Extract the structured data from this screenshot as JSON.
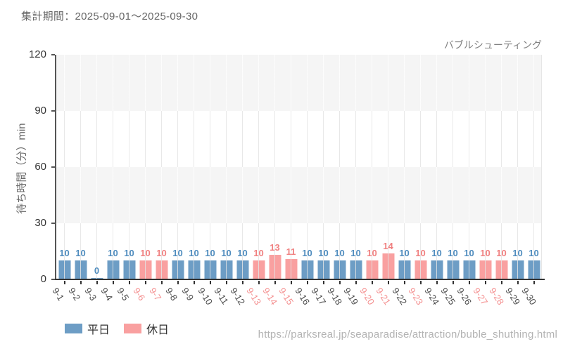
{
  "header": {
    "period_label": "集計期間：2025-09-01～2025-09-30"
  },
  "footer": {
    "source_url": "https://parksreal.jp/seaparadise/attraction/buble_shuthing.html"
  },
  "legend": {
    "items": [
      {
        "key": "weekday",
        "label": "平日",
        "color": "#6d9dc5"
      },
      {
        "key": "holiday",
        "label": "休日",
        "color": "#f9a0a0"
      }
    ]
  },
  "chart_data": {
    "type": "bar",
    "title": "バブルシューティング",
    "xlabel": "",
    "ylabel": "待ち時間（分）min",
    "ylim": [
      0,
      120
    ],
    "yticks": [
      0,
      30,
      60,
      90,
      120
    ],
    "grid": "vertical lines at each category; horizontal alternating gray/white bands every 30 units",
    "legend_position": "bottom-left",
    "x_tick_rotation_deg": 57,
    "categories": [
      "9-1",
      "9-2",
      "9-3",
      "9-4",
      "9-5",
      "9-6",
      "9-7",
      "9-8",
      "9-9",
      "9-10",
      "9-11",
      "9-12",
      "9-13",
      "9-14",
      "9-15",
      "9-16",
      "9-17",
      "9-18",
      "9-19",
      "9-20",
      "9-21",
      "9-22",
      "9-23",
      "9-24",
      "9-25",
      "9-26",
      "9-27",
      "9-28",
      "9-29",
      "9-30"
    ],
    "series_colors": {
      "平日": "#6d9dc5",
      "休日": "#f9a0a0"
    },
    "value_label_colors": {
      "平日": "#4f8cbe",
      "休日": "#f08080"
    },
    "tick_label_colors": {
      "平日": "#4a4a4a",
      "休日": "#f48f8f"
    },
    "points": [
      {
        "date": "9-1",
        "value": 10,
        "series": "平日"
      },
      {
        "date": "9-2",
        "value": 10,
        "series": "平日"
      },
      {
        "date": "9-3",
        "value": 0,
        "series": "平日"
      },
      {
        "date": "9-4",
        "value": 10,
        "series": "平日"
      },
      {
        "date": "9-5",
        "value": 10,
        "series": "平日"
      },
      {
        "date": "9-6",
        "value": 10,
        "series": "休日"
      },
      {
        "date": "9-7",
        "value": 10,
        "series": "休日"
      },
      {
        "date": "9-8",
        "value": 10,
        "series": "平日"
      },
      {
        "date": "9-9",
        "value": 10,
        "series": "平日"
      },
      {
        "date": "9-10",
        "value": 10,
        "series": "平日"
      },
      {
        "date": "9-11",
        "value": 10,
        "series": "平日"
      },
      {
        "date": "9-12",
        "value": 10,
        "series": "平日"
      },
      {
        "date": "9-13",
        "value": 10,
        "series": "休日"
      },
      {
        "date": "9-14",
        "value": 13,
        "series": "休日"
      },
      {
        "date": "9-15",
        "value": 11,
        "series": "休日"
      },
      {
        "date": "9-16",
        "value": 10,
        "series": "平日"
      },
      {
        "date": "9-17",
        "value": 10,
        "series": "平日"
      },
      {
        "date": "9-18",
        "value": 10,
        "series": "平日"
      },
      {
        "date": "9-19",
        "value": 10,
        "series": "平日"
      },
      {
        "date": "9-20",
        "value": 10,
        "series": "休日"
      },
      {
        "date": "9-21",
        "value": 14,
        "series": "休日"
      },
      {
        "date": "9-22",
        "value": 10,
        "series": "平日"
      },
      {
        "date": "9-23",
        "value": 10,
        "series": "休日"
      },
      {
        "date": "9-24",
        "value": 10,
        "series": "平日"
      },
      {
        "date": "9-25",
        "value": 10,
        "series": "平日"
      },
      {
        "date": "9-26",
        "value": 10,
        "series": "平日"
      },
      {
        "date": "9-27",
        "value": 10,
        "series": "休日"
      },
      {
        "date": "9-28",
        "value": 10,
        "series": "休日"
      },
      {
        "date": "9-29",
        "value": 10,
        "series": "平日"
      },
      {
        "date": "9-30",
        "value": 10,
        "series": "平日"
      }
    ]
  }
}
